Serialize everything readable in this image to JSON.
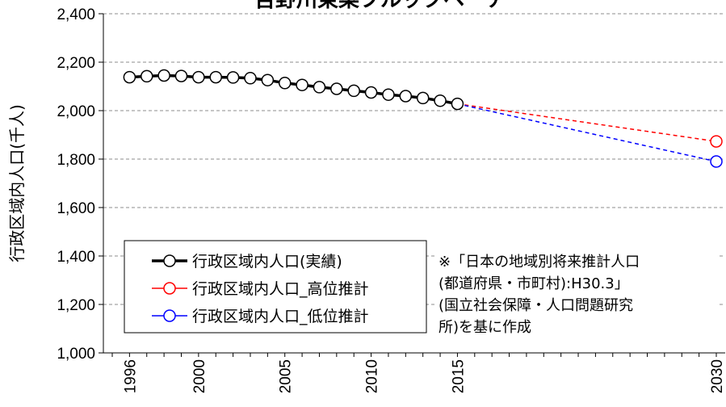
{
  "chart_data": {
    "type": "line",
    "title": "吉野川東菜ブルックヘーナ",
    "ylabel": "行政区域内人口(千人)",
    "xlabel": "",
    "ylim": [
      1000,
      2400
    ],
    "xlim": [
      1995,
      2030
    ],
    "y_ticks": [
      "1,000",
      "1,200",
      "1,400",
      "1,600",
      "1,800",
      "2,000",
      "2,200",
      "2,400"
    ],
    "x_ticks": [
      "1996",
      "2000",
      "2005",
      "2010",
      "2015",
      "2030"
    ],
    "grid": true,
    "legend_position": "bottom-left",
    "series": [
      {
        "name": "行政区域内人口(実績)",
        "color": "#000000",
        "style": "solid",
        "x": [
          1996,
          1997,
          1998,
          1999,
          2000,
          2001,
          2002,
          2003,
          2004,
          2005,
          2006,
          2007,
          2008,
          2009,
          2010,
          2011,
          2012,
          2013,
          2014,
          2015
        ],
        "values": [
          2138,
          2142,
          2145,
          2143,
          2138,
          2138,
          2137,
          2134,
          2126,
          2114,
          2106,
          2097,
          2090,
          2082,
          2075,
          2066,
          2060,
          2052,
          2041,
          2028
        ]
      },
      {
        "name": "行政区域内人口_高位推計",
        "color": "#ff0000",
        "style": "dashed",
        "x": [
          2015,
          2030
        ],
        "values": [
          2028,
          1873
        ]
      },
      {
        "name": "行政区域内人口_低位推計",
        "color": "#0000ff",
        "style": "dashed",
        "x": [
          2015,
          2030
        ],
        "values": [
          2028,
          1790
        ]
      }
    ],
    "note_lines": [
      "※「日本の地域別将来推計人口",
      "(都道府県・市町村):H30.3」",
      "(国立社会保障・人口問題研究",
      "所)を基に作成"
    ]
  }
}
